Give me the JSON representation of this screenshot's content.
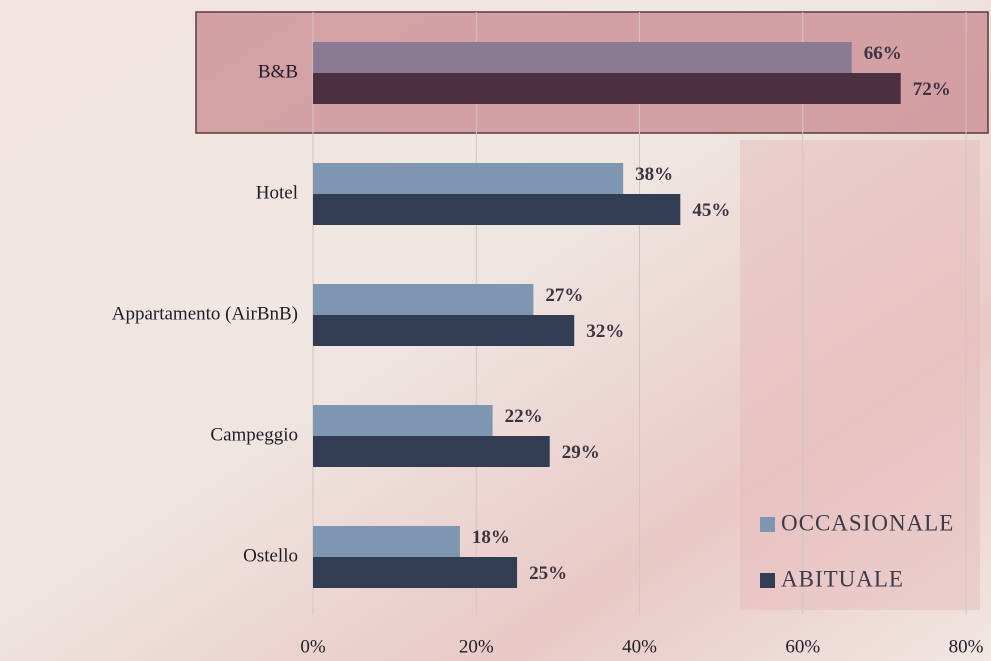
{
  "chart_data": {
    "type": "barh",
    "categories": [
      "B&B",
      "Hotel",
      "Appartamento (AirBnB)",
      "Campeggio",
      "Ostello"
    ],
    "series": [
      {
        "name": "OCCASIONALE",
        "color": "#7f96b0",
        "values": [
          66,
          38,
          27,
          22,
          18
        ],
        "value_labels": [
          "66%",
          "38%",
          "27%",
          "22%",
          "18%"
        ]
      },
      {
        "name": "ABITUALE",
        "color": "#323c52",
        "values": [
          72,
          45,
          32,
          29,
          25
        ],
        "value_labels": [
          "72%",
          "45%",
          "32%",
          "29%",
          "25%"
        ]
      }
    ],
    "highlight": {
      "category": 0,
      "colors": [
        "#8b7a94",
        "#4a3040"
      ],
      "fill": "#c98a90",
      "stroke": "#5a3a3a"
    },
    "xlim": [
      0,
      80
    ],
    "xticks": [
      {
        "value": 0,
        "label": "0%"
      },
      {
        "value": 20,
        "label": "20%"
      },
      {
        "value": 40,
        "label": "40%"
      },
      {
        "value": 60,
        "label": "60%"
      },
      {
        "value": 80,
        "label": "80%"
      }
    ],
    "grid": true,
    "legend": "bottom-right"
  }
}
